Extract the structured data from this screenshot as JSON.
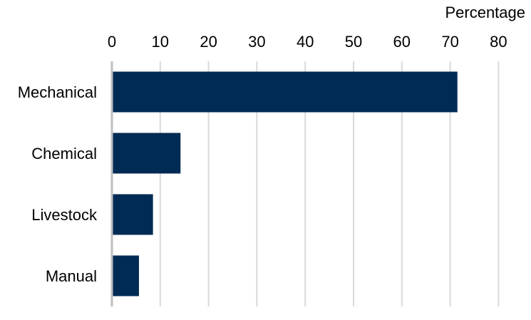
{
  "chart_data": {
    "type": "bar",
    "orientation": "horizontal",
    "title": "",
    "xlabel": "Percentage",
    "ylabel": "",
    "categories": [
      "Mechanical",
      "Chemical",
      "Livestock",
      "Manual"
    ],
    "values": [
      71.5,
      14.2,
      8.5,
      5.6
    ],
    "xlim": [
      0,
      80
    ],
    "xticks": [
      "0",
      "10",
      "20",
      "30",
      "40",
      "50",
      "60",
      "70",
      "80"
    ],
    "xaxis_position": "top",
    "grid": true,
    "legend": "none",
    "colors": {
      "bar": "#002b54",
      "grid": "#d9d9d9",
      "axis": "#bfbfbf"
    }
  }
}
